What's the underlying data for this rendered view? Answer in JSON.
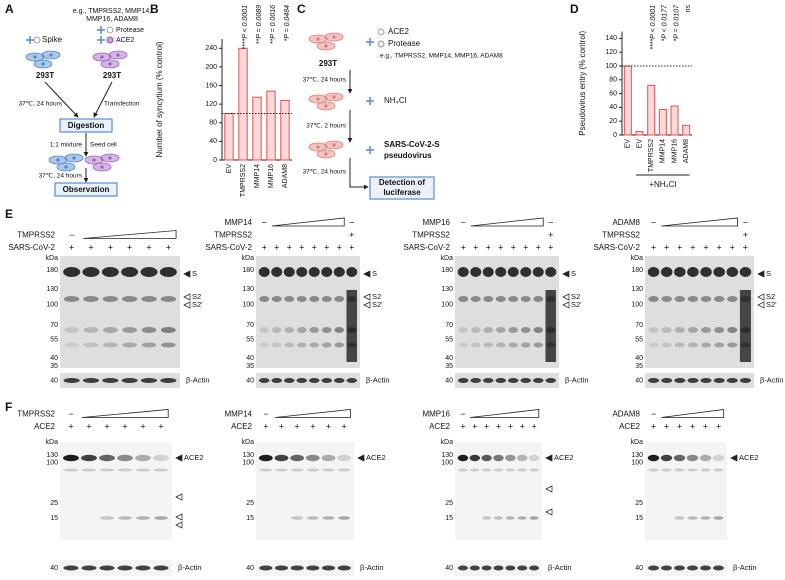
{
  "panel_labels": [
    "A",
    "B",
    "C",
    "D",
    "E",
    "F"
  ],
  "panel_a": {
    "spike": "Spike",
    "note": [
      "e.g., TMPRSS2, MMP14,",
      "MMP16, ADAM8"
    ],
    "protease": "Protease",
    "ace2": "ACE2",
    "cell_left": "293T",
    "cell_right": "293T",
    "incubation": "37℃, 24 hours",
    "transfection": "Transfection",
    "digestion": "Digestion",
    "mixture": "1:1 mixture",
    "seed": "Seed cell",
    "incubation_2": "37℃, 24 hours",
    "observation": "Observation"
  },
  "panel_c": {
    "cell": "293T",
    "ace2": "ACE2",
    "protease": "Protease",
    "note": "e.g., TMPRSS2, MMP14, MMP16, ADAM8",
    "incubation": "37℃, 24 hours",
    "nh4cl": "NH₄Cl",
    "incubation_2": "37℃, 2 hours",
    "virus": [
      "SARS-CoV-2-S",
      "pseudovirus"
    ],
    "incubation_3": "37℃, 24 hours",
    "detection": [
      "Detection of",
      "luciferase"
    ]
  },
  "chart_data": [
    {
      "type": "bar",
      "y_label": "Number of syncytium (% control)",
      "categories": [
        "EV",
        "TMPRSS2",
        "MMP14",
        "MMP16",
        "ADAM8"
      ],
      "values": [
        100,
        240,
        135,
        148,
        128
      ],
      "annotations": [
        null,
        "****P < 0.0001",
        "**P = 0.0089",
        "**P = 0.0016",
        "*P = 0.0484"
      ],
      "ylim": [
        0,
        260
      ],
      "yticks": [
        0,
        40,
        80,
        120,
        160,
        200,
        240
      ],
      "reference_line": 100,
      "color": "#e8504f"
    },
    {
      "type": "bar",
      "y_label": "Pseudovirus entry (% control)",
      "categories": [
        "EV",
        "EV",
        "TMPRSS2",
        "MMP14",
        "MMP16",
        "ADAM8"
      ],
      "values": [
        100,
        5,
        72,
        37,
        42,
        14
      ],
      "annotations": [
        null,
        null,
        "****P < 0.0001",
        "*P < 0.0177",
        "*P = 0.0107",
        "ns"
      ],
      "group_label": "+NH₄Cl",
      "ylim": [
        0,
        150
      ],
      "yticks": [
        0,
        20,
        40,
        60,
        80,
        100,
        120,
        140
      ],
      "reference_line": 100,
      "color": "#e8504f"
    }
  ],
  "blots_e": {
    "kda_label": "kDa",
    "loading": "β-Actin",
    "items": [
      {
        "rows": [
          {
            "label": "TMPRSS2",
            "signs": [
              "−",
              null,
              null,
              null,
              null,
              null
            ]
          },
          {
            "label": "SARS-CoV-2",
            "signs": [
              "+",
              "+",
              "+",
              "+",
              "+",
              "+"
            ]
          }
        ],
        "kda": [
          180,
          130,
          100,
          70,
          55,
          40,
          35
        ],
        "actin_kda": 40,
        "bands": [
          "S",
          "S2",
          "S2'"
        ]
      },
      {
        "rows": [
          {
            "label": "MMP14",
            "signs": [
              "−",
              null,
              null,
              null,
              null,
              null,
              null,
              "−"
            ]
          },
          {
            "label": "TMPRSS2",
            "signs": [
              null,
              null,
              null,
              null,
              null,
              null,
              null,
              "+"
            ]
          },
          {
            "label": "SARS-CoV-2",
            "signs": [
              "+",
              "+",
              "+",
              "+",
              "+",
              "+",
              "+",
              "+"
            ]
          }
        ],
        "kda": [
          180,
          130,
          100,
          70,
          55,
          40,
          35
        ],
        "actin_kda": 40,
        "bands": [
          "S",
          "S2",
          "S2'"
        ]
      },
      {
        "rows": [
          {
            "label": "MMP16",
            "signs": [
              "−",
              null,
              null,
              null,
              null,
              null,
              null,
              "−"
            ]
          },
          {
            "label": "TMPRSS2",
            "signs": [
              null,
              null,
              null,
              null,
              null,
              null,
              null,
              "+"
            ]
          },
          {
            "label": "SARS-CoV-2",
            "signs": [
              "+",
              "+",
              "+",
              "+",
              "+",
              "+",
              "+",
              "+"
            ]
          }
        ],
        "kda": [
          180,
          130,
          100,
          70,
          55,
          40,
          35
        ],
        "actin_kda": 40,
        "bands": [
          "S",
          "S2",
          "S2'"
        ]
      },
      {
        "rows": [
          {
            "label": "ADAM8",
            "signs": [
              "−",
              null,
              null,
              null,
              null,
              null,
              null,
              "−"
            ]
          },
          {
            "label": "TMPRSS2",
            "signs": [
              null,
              null,
              null,
              null,
              null,
              null,
              null,
              "+"
            ]
          },
          {
            "label": "SARS-CoV-2",
            "signs": [
              "+",
              "+",
              "+",
              "+",
              "+",
              "+",
              "+",
              "+"
            ]
          }
        ],
        "kda": [
          180,
          130,
          100,
          70,
          55,
          40,
          35
        ],
        "actin_kda": 40,
        "bands": [
          "S",
          "S2",
          "S2'"
        ]
      }
    ]
  },
  "blots_f": {
    "kda_label": "kDa",
    "loading": "β-Actin",
    "items": [
      {
        "rows": [
          {
            "label": "TMPRSS2",
            "signs": [
              "−",
              null,
              null,
              null,
              null,
              null
            ]
          },
          {
            "label": "ACE2",
            "signs": [
              "+",
              "+",
              "+",
              "+",
              "+",
              "+"
            ]
          }
        ],
        "kda": [
          130,
          100,
          25,
          15
        ],
        "actin_kda": 40,
        "bands": [
          "ACE2"
        ]
      },
      {
        "rows": [
          {
            "label": "MMP14",
            "signs": [
              "−",
              null,
              null,
              null,
              null,
              null
            ]
          },
          {
            "label": "ACE2",
            "signs": [
              "+",
              "+",
              "+",
              "+",
              "+",
              "+"
            ]
          }
        ],
        "kda": [
          130,
          100,
          25,
          15
        ],
        "actin_kda": 40,
        "bands": [
          "ACE2"
        ]
      },
      {
        "rows": [
          {
            "label": "MMP16",
            "signs": [
              "−",
              null,
              null,
              null,
              null,
              null,
              null
            ]
          },
          {
            "label": "ACE2",
            "signs": [
              "+",
              "+",
              "+",
              "+",
              "+",
              "+",
              "+"
            ]
          }
        ],
        "kda": [
          130,
          100,
          25,
          15
        ],
        "actin_kda": 40,
        "bands": [
          "ACE2"
        ]
      },
      {
        "rows": [
          {
            "label": "ADAM8",
            "signs": [
              "−",
              null,
              null,
              null,
              null,
              null
            ]
          },
          {
            "label": "ACE2",
            "signs": [
              "+",
              "+",
              "+",
              "+",
              "+",
              "+"
            ]
          }
        ],
        "kda": [
          130,
          100,
          25,
          15
        ],
        "actin_kda": 40,
        "bands": [
          "ACE2"
        ]
      }
    ]
  }
}
